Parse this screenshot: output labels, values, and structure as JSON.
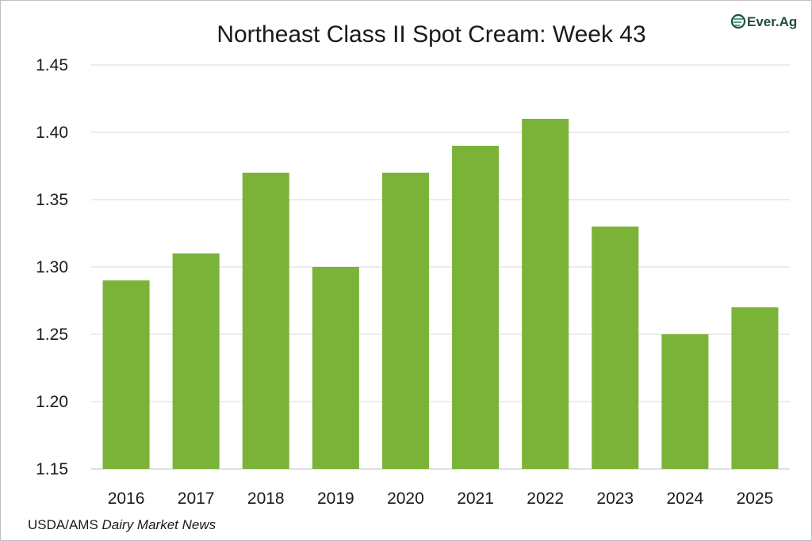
{
  "chart_data": {
    "type": "bar",
    "title": "Northeast Class II Spot Cream: Week 43",
    "categories": [
      "2016",
      "2017",
      "2018",
      "2019",
      "2020",
      "2021",
      "2022",
      "2023",
      "2024",
      "2025"
    ],
    "values": [
      1.29,
      1.31,
      1.37,
      1.3,
      1.37,
      1.39,
      1.41,
      1.33,
      1.25,
      1.27
    ],
    "ylim": [
      1.15,
      1.45
    ],
    "yticks": [
      "1.15",
      "1.20",
      "1.25",
      "1.30",
      "1.35",
      "1.40",
      "1.45"
    ],
    "xlabel": "",
    "ylabel": "",
    "grid": true,
    "bar_color": "#7ab338",
    "grid_color": "#d9d9d9"
  },
  "source": {
    "prefix": "USDA/AMS ",
    "publication": "Dairy Market News"
  },
  "logo": {
    "text": "Ever.Ag",
    "icon": "ever-ag-logo-icon",
    "color": "#1f4e46"
  }
}
